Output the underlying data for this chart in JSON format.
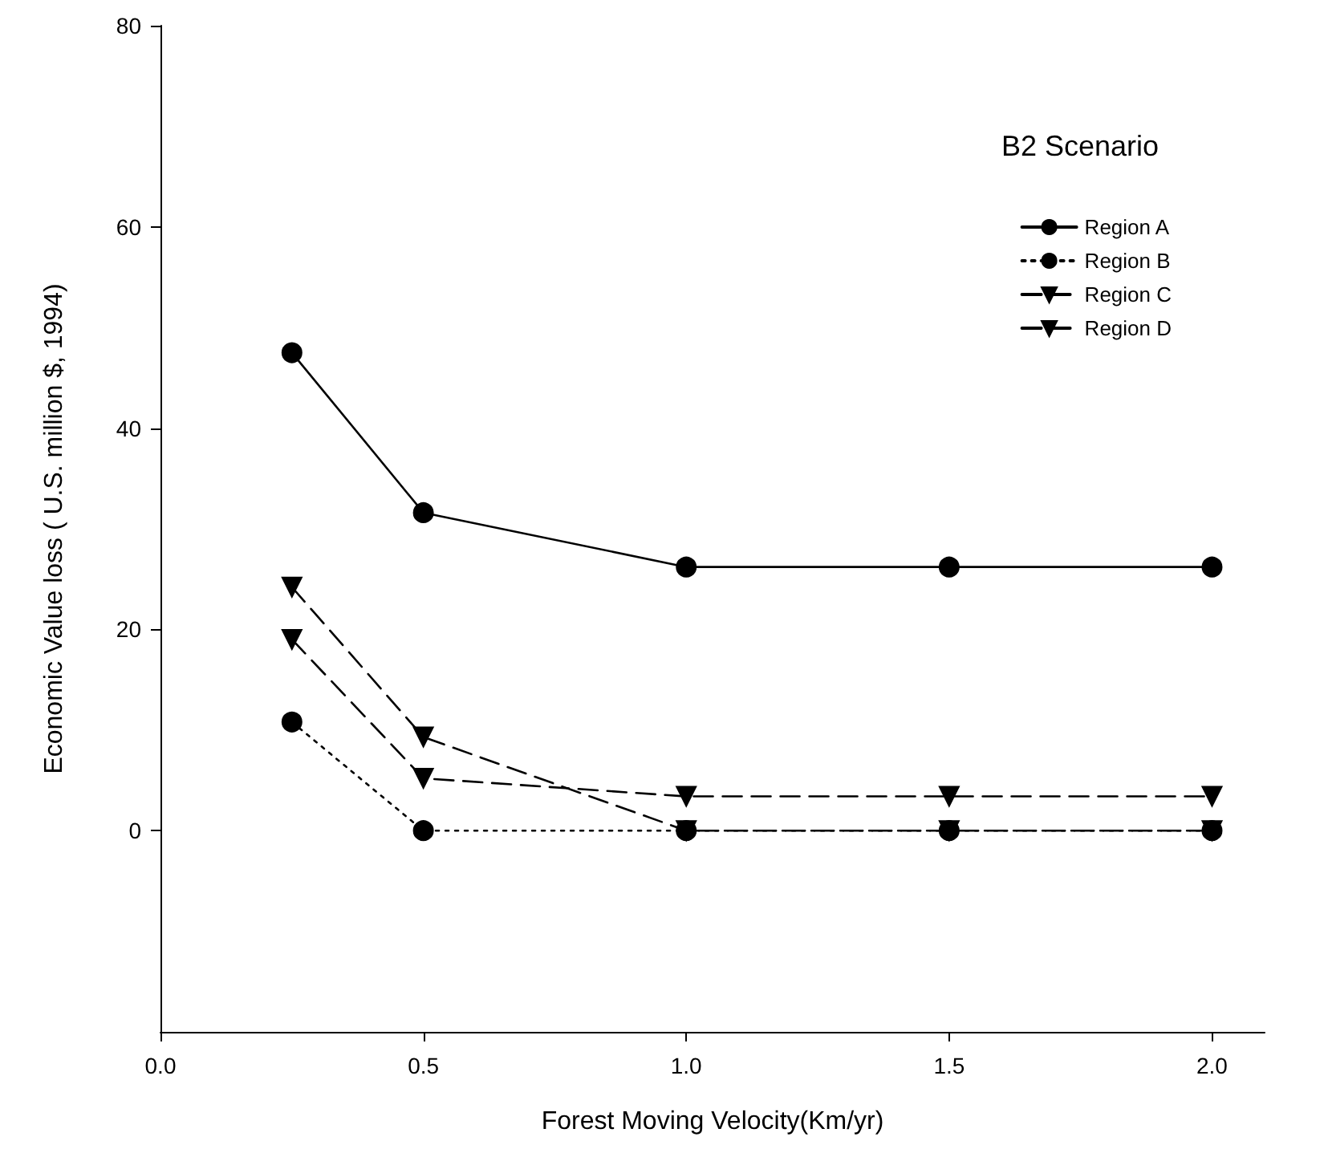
{
  "chart_data": {
    "type": "line",
    "xlabel": "Forest Moving Velocity(Km/yr)",
    "ylabel": "Economic Value loss ( U.S. million $, 1994)",
    "legend_title": "B2 Scenario",
    "x": [
      0.25,
      0.5,
      1.0,
      1.5,
      2.0
    ],
    "series": [
      {
        "name": "Region A",
        "color": "#000000",
        "marker": "circle",
        "line_style": "solid",
        "values": [
          47.5,
          31.6,
          26.2,
          26.2,
          26.2
        ]
      },
      {
        "name": "Region B",
        "color": "#000000",
        "marker": "circle",
        "line_style": "dotted",
        "values": [
          10.8,
          0,
          0,
          0,
          0
        ]
      },
      {
        "name": "Region C",
        "color": "#000000",
        "marker": "triangle",
        "line_style": "dashed",
        "values": [
          24.2,
          9.3,
          0,
          0,
          0
        ]
      },
      {
        "name": "Region D",
        "color": "#000000",
        "marker": "triangle",
        "line_style": "dashed",
        "values": [
          19.0,
          5.2,
          3.4,
          3.4,
          3.4
        ]
      }
    ],
    "xlim": [
      0,
      2.1
    ],
    "xticks": [
      {
        "value": 0,
        "label": "0.0"
      },
      {
        "value": 0.5,
        "label": "0.5"
      },
      {
        "value": 1,
        "label": "1.0"
      },
      {
        "value": 1.5,
        "label": "1.5"
      },
      {
        "value": 2,
        "label": "2.0"
      }
    ],
    "ylim": [
      -20,
      80
    ],
    "yticks": [
      0,
      20,
      40,
      60,
      80
    ],
    "grid": false,
    "legend": "top right"
  }
}
